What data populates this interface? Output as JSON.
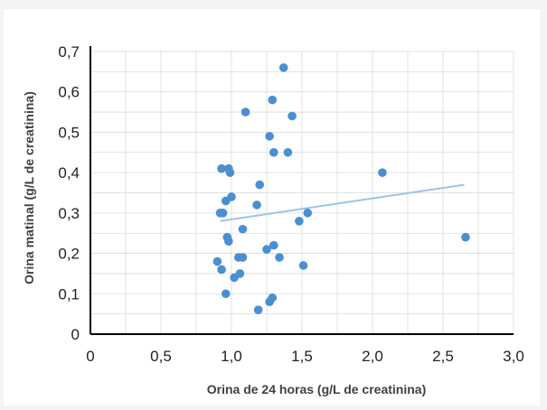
{
  "colors": {
    "background": "#ffffff",
    "outer": "#f3f4f6",
    "grid": "#d9d9d9",
    "axis": "#000000",
    "point": "#4a8fd0",
    "trendline": "#9dc3e6",
    "label_text": "#404040",
    "tick_text": "#222222"
  },
  "chart_data": {
    "type": "scatter",
    "title": "",
    "xlabel": "Orina de 24 horas (g/L de creatinina)",
    "ylabel": "Orina matinal (g/L de creatinina)",
    "xlim": [
      0,
      3.0
    ],
    "ylim": [
      0,
      0.7
    ],
    "grid": true,
    "x_ticks": [
      0,
      0.5,
      1.0,
      1.5,
      2.0,
      2.5,
      3.0
    ],
    "x_tick_labels": [
      "0",
      "0,5",
      "1,0",
      "1,5",
      "2,0",
      "2,5",
      "3,0"
    ],
    "y_ticks": [
      0,
      0.1,
      0.2,
      0.3,
      0.4,
      0.5,
      0.6,
      0.7
    ],
    "y_tick_labels": [
      "0",
      "0,1",
      "0,2",
      "0,3",
      "0,4",
      "0,5",
      "0,6",
      "0,7"
    ],
    "series": [
      {
        "points": [
          [
            0.9,
            0.18
          ],
          [
            0.93,
            0.16
          ],
          [
            0.92,
            0.3
          ],
          [
            0.94,
            0.3
          ],
          [
            0.93,
            0.41
          ],
          [
            0.96,
            0.33
          ],
          [
            0.97,
            0.24
          ],
          [
            0.98,
            0.23
          ],
          [
            0.98,
            0.41
          ],
          [
            0.99,
            0.4
          ],
          [
            1.0,
            0.34
          ],
          [
            0.96,
            0.1
          ],
          [
            1.02,
            0.14
          ],
          [
            1.05,
            0.19
          ],
          [
            1.06,
            0.15
          ],
          [
            1.08,
            0.19
          ],
          [
            1.08,
            0.26
          ],
          [
            1.1,
            0.55
          ],
          [
            1.18,
            0.32
          ],
          [
            1.2,
            0.37
          ],
          [
            1.19,
            0.06
          ],
          [
            1.25,
            0.21
          ],
          [
            1.27,
            0.49
          ],
          [
            1.29,
            0.58
          ],
          [
            1.27,
            0.08
          ],
          [
            1.29,
            0.09
          ],
          [
            1.3,
            0.45
          ],
          [
            1.3,
            0.22
          ],
          [
            1.34,
            0.19
          ],
          [
            1.37,
            0.66
          ],
          [
            1.4,
            0.45
          ],
          [
            1.43,
            0.54
          ],
          [
            1.48,
            0.28
          ],
          [
            1.51,
            0.17
          ],
          [
            1.54,
            0.3
          ],
          [
            2.07,
            0.4
          ],
          [
            2.66,
            0.24
          ]
        ]
      }
    ],
    "trendline": {
      "x": [
        0.92,
        2.65
      ],
      "y": [
        0.28,
        0.37
      ]
    }
  }
}
